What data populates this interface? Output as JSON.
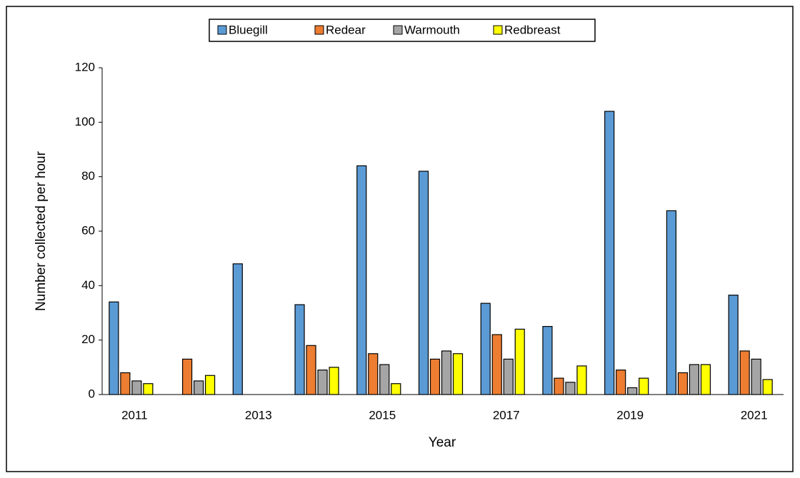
{
  "chart_data": {
    "type": "bar",
    "x_label": "Year",
    "y_label": "Number collected per hour",
    "categories": [
      "2011",
      null,
      "2013",
      null,
      "2015",
      null,
      "2017",
      null,
      "2019",
      null,
      "2021"
    ],
    "series": [
      {
        "name": "Bluegill",
        "color": "#5b9bd5",
        "values": [
          34,
          0,
          48,
          33,
          84,
          82,
          33.5,
          25,
          104,
          67.5,
          36.5
        ]
      },
      {
        "name": "Redear",
        "color": "#ed7d31",
        "values": [
          8,
          13,
          0,
          18,
          15,
          13,
          22,
          6,
          9,
          8,
          16
        ]
      },
      {
        "name": "Warmouth",
        "color": "#a5a5a5",
        "values": [
          5,
          5,
          0,
          9,
          11,
          16,
          13,
          4.5,
          2.5,
          11,
          13
        ]
      },
      {
        "name": "Redbreast",
        "color": "#ffff00",
        "values": [
          4,
          7,
          0,
          10,
          4,
          15,
          24,
          10.5,
          6,
          11,
          5.5
        ]
      }
    ],
    "ylim": [
      0,
      120
    ],
    "yticks": [
      0,
      20,
      40,
      60,
      80,
      100,
      120
    ],
    "grid": false,
    "legend": "top"
  }
}
